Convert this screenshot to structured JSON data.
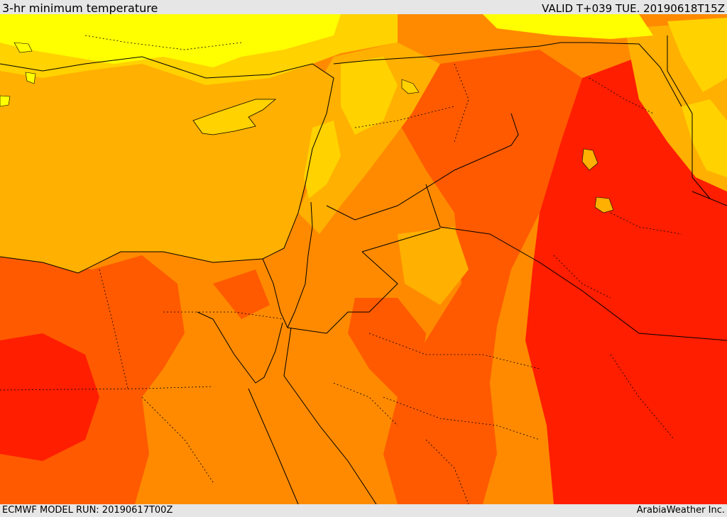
{
  "header": {
    "title": "3-hr minimum temperature",
    "valid": "VALID T+039 TUE. 20190618T15Z"
  },
  "footer": {
    "model_run": "ECMWF MODEL RUN: 20190617T00Z",
    "credit": "ArabiaWeather Inc."
  },
  "palette": {
    "sea": "#ffb000",
    "band_yellow": "#ffff00",
    "band_gold": "#ffd200",
    "band_amber": "#ffb000",
    "band_orange": "#ff8a00",
    "band_red_orange": "#ff5a00",
    "band_red": "#ff1e00",
    "borders": "#000000"
  }
}
